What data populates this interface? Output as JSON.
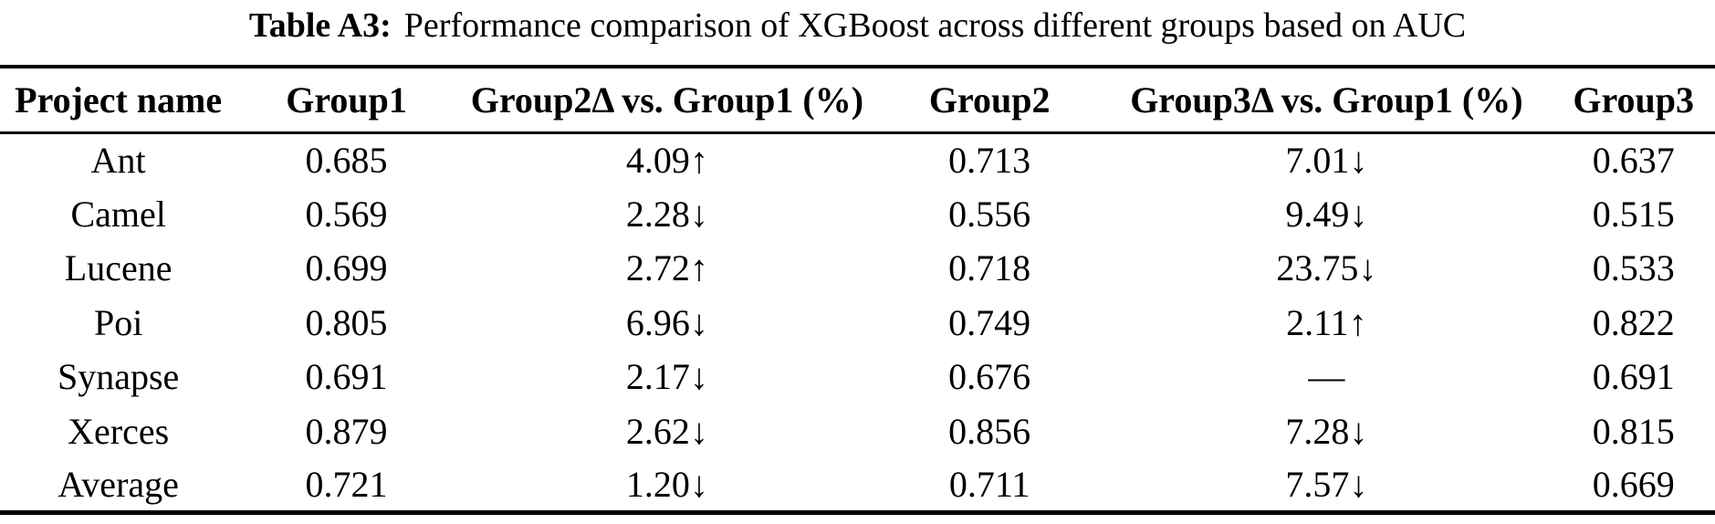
{
  "caption": {
    "label": "Table A3:",
    "text": "Performance comparison of XGBoost across different groups based on AUC"
  },
  "table": {
    "columns": [
      "Project name",
      "Group1",
      "Group2Δ vs. Group1 (%)",
      "Group2",
      "Group3Δ vs. Group1 (%)",
      "Group3"
    ],
    "rows": [
      [
        "Ant",
        "0.685",
        "4.09↑",
        "0.713",
        "7.01↓",
        "0.637"
      ],
      [
        "Camel",
        "0.569",
        "2.28↓",
        "0.556",
        "9.49↓",
        "0.515"
      ],
      [
        "Lucene",
        "0.699",
        "2.72↑",
        "0.718",
        "23.75↓",
        "0.533"
      ],
      [
        "Poi",
        "0.805",
        "6.96↓",
        "0.749",
        "2.11↑",
        "0.822"
      ],
      [
        "Synapse",
        "0.691",
        "2.17↓",
        "0.676",
        "—",
        "0.691"
      ],
      [
        "Xerces",
        "0.879",
        "2.62↓",
        "0.856",
        "7.28↓",
        "0.815"
      ],
      [
        "Average",
        "0.721",
        "1.20↓",
        "0.711",
        "7.57↓",
        "0.669"
      ]
    ]
  },
  "chart_data": {
    "type": "table",
    "title": "Table A3: Performance comparison of XGBoost across different groups based on AUC",
    "columns": [
      "Project name",
      "Group1",
      "Group2Δ vs. Group1 (%)",
      "Group2",
      "Group3Δ vs. Group1 (%)",
      "Group3"
    ],
    "rows": [
      {
        "project": "Ant",
        "group1": 0.685,
        "group2_delta_pct": "4.09↑",
        "group2": 0.713,
        "group3_delta_pct": "7.01↓",
        "group3": 0.637
      },
      {
        "project": "Camel",
        "group1": 0.569,
        "group2_delta_pct": "2.28↓",
        "group2": 0.556,
        "group3_delta_pct": "9.49↓",
        "group3": 0.515
      },
      {
        "project": "Lucene",
        "group1": 0.699,
        "group2_delta_pct": "2.72↑",
        "group2": 0.718,
        "group3_delta_pct": "23.75↓",
        "group3": 0.533
      },
      {
        "project": "Poi",
        "group1": 0.805,
        "group2_delta_pct": "6.96↓",
        "group2": 0.749,
        "group3_delta_pct": "2.11↑",
        "group3": 0.822
      },
      {
        "project": "Synapse",
        "group1": 0.691,
        "group2_delta_pct": "2.17↓",
        "group2": 0.676,
        "group3_delta_pct": "—",
        "group3": 0.691
      },
      {
        "project": "Xerces",
        "group1": 0.879,
        "group2_delta_pct": "2.62↓",
        "group2": 0.856,
        "group3_delta_pct": "7.28↓",
        "group3": 0.815
      },
      {
        "project": "Average",
        "group1": 0.721,
        "group2_delta_pct": "1.20↓",
        "group2": 0.711,
        "group3_delta_pct": "7.57↓",
        "group3": 0.669
      }
    ],
    "colors": {
      "text": "#000000",
      "background": "#ffffff",
      "rule": "#000000"
    }
  }
}
